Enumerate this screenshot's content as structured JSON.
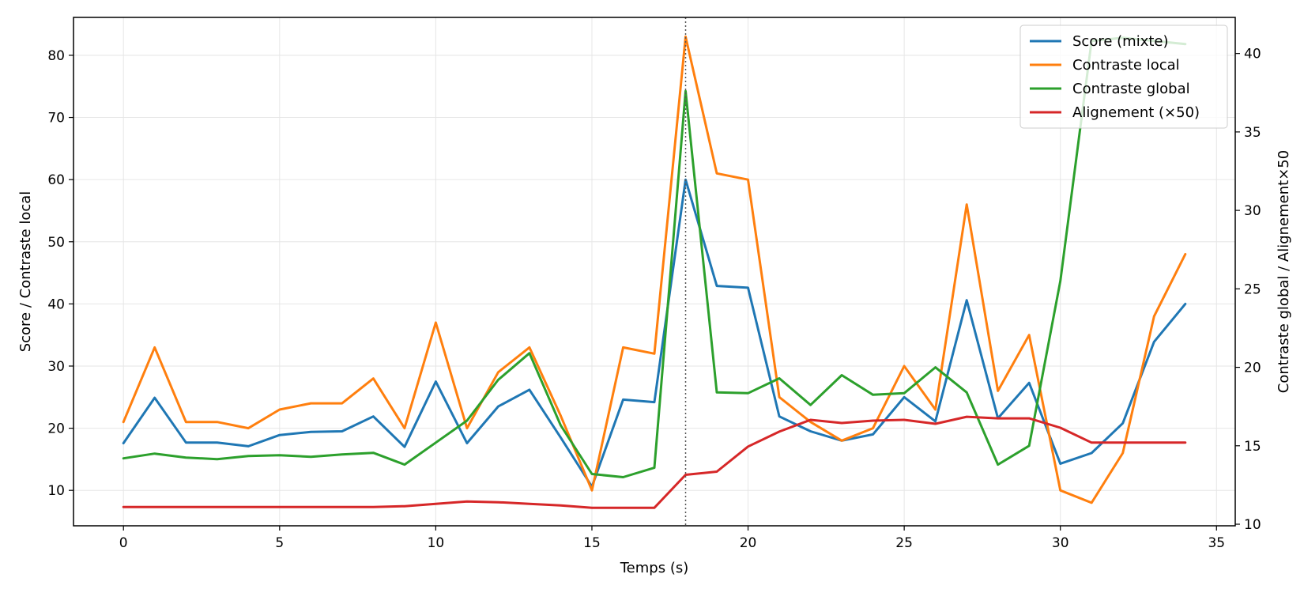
{
  "chart_data": {
    "type": "line",
    "xlabel": "Temps (s)",
    "ylabel_left": "Score / Contraste local",
    "ylabel_right": "Contraste global / Alignement×50",
    "xlim": [
      -1.6,
      35.6
    ],
    "ylim_left": [
      4.3,
      86.1
    ],
    "ylim_right": [
      9.9,
      42.3
    ],
    "x_ticks": [
      0,
      5,
      10,
      15,
      20,
      25,
      30,
      35
    ],
    "y_ticks_left": [
      10,
      20,
      30,
      40,
      50,
      60,
      70,
      80
    ],
    "y_ticks_right": [
      10,
      15,
      20,
      25,
      30,
      35,
      40
    ],
    "grid": true,
    "legend_position": "top-right",
    "vline_x": 18,
    "x": [
      0,
      1,
      2,
      3,
      4,
      5,
      6,
      7,
      8,
      9,
      10,
      11,
      12,
      13,
      14,
      15,
      16,
      17,
      18,
      19,
      20,
      21,
      22,
      23,
      24,
      25,
      26,
      27,
      28,
      29,
      30,
      31,
      32,
      33,
      34
    ],
    "series": [
      {
        "name": "Score (mixte)",
        "axis": "left",
        "color": "#1f77b4",
        "values": [
          17.6,
          24.9,
          17.7,
          17.7,
          17.1,
          18.9,
          19.4,
          19.5,
          21.9,
          17.0,
          27.5,
          17.6,
          23.5,
          26.2,
          18.5,
          10.6,
          24.6,
          24.2,
          60.0,
          42.9,
          42.6,
          21.9,
          19.5,
          18.0,
          19.0,
          25.0,
          21.1,
          40.6,
          21.6,
          27.3,
          14.3,
          16.0,
          20.8,
          33.9,
          40.0
        ]
      },
      {
        "name": "Contraste local",
        "axis": "left",
        "color": "#ff7f0e",
        "values": [
          21,
          33,
          21,
          21,
          20,
          23,
          24,
          24,
          28,
          20,
          37,
          20,
          29,
          33,
          22,
          10,
          33,
          32,
          83,
          61,
          60,
          25,
          21,
          18,
          20,
          30,
          23,
          56,
          26,
          35,
          10,
          8,
          16,
          38,
          48
        ]
      },
      {
        "name": "Contraste global",
        "axis": "right",
        "color": "#2ca02c",
        "values": [
          14.2,
          14.5,
          14.25,
          14.15,
          14.35,
          14.4,
          14.3,
          14.45,
          14.55,
          13.8,
          15.2,
          16.6,
          19.2,
          20.9,
          16.3,
          13.2,
          13.0,
          13.6,
          37.6,
          18.4,
          18.35,
          19.3,
          17.6,
          19.5,
          18.25,
          18.35,
          20.0,
          18.4,
          13.8,
          15.0,
          25.5,
          40.8,
          41.0,
          40.8,
          40.6
        ]
      },
      {
        "name": "Alignement (×50)",
        "axis": "right",
        "color": "#d62728",
        "values": [
          11.1,
          11.1,
          11.1,
          11.1,
          11.1,
          11.1,
          11.1,
          11.1,
          11.1,
          11.15,
          11.3,
          11.45,
          11.4,
          11.3,
          11.2,
          11.05,
          11.05,
          11.05,
          13.15,
          13.35,
          14.95,
          15.9,
          16.65,
          16.45,
          16.6,
          16.65,
          16.4,
          16.85,
          16.75,
          16.75,
          16.15,
          15.2,
          15.2,
          15.2,
          15.2
        ]
      }
    ]
  }
}
